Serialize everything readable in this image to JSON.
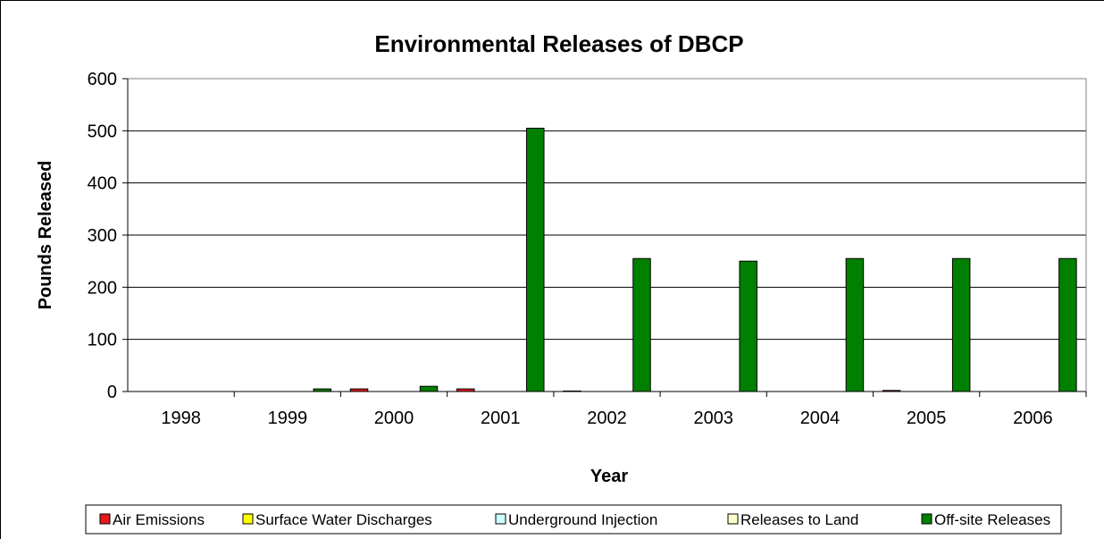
{
  "chart_data": {
    "type": "bar",
    "title": "Environmental Releases of DBCP",
    "xlabel": "Year",
    "ylabel": "Pounds Released",
    "ylim": [
      0,
      600
    ],
    "yticks": [
      0,
      100,
      200,
      300,
      400,
      500,
      600
    ],
    "categories": [
      "1998",
      "1999",
      "2000",
      "2001",
      "2002",
      "2003",
      "2004",
      "2005",
      "2006"
    ],
    "grid": true,
    "legend_position": "bottom",
    "series": [
      {
        "name": "Air Emissions",
        "color": "#e31a1c",
        "values": [
          0,
          0,
          5,
          5,
          1,
          0,
          0,
          2,
          0
        ]
      },
      {
        "name": "Surface Water Discharges",
        "color": "#ffff00",
        "values": [
          0,
          0,
          0,
          0,
          0,
          0,
          0,
          0,
          0
        ]
      },
      {
        "name": "Underground Injection",
        "color": "#ccffff",
        "values": [
          0,
          0,
          0,
          0,
          0,
          0,
          0,
          0,
          0
        ]
      },
      {
        "name": "Releases to Land",
        "color": "#ffffcc",
        "values": [
          0,
          0,
          0,
          0,
          0,
          0,
          0,
          0,
          0
        ]
      },
      {
        "name": "Off-site Releases",
        "color": "#008000",
        "values": [
          0,
          5,
          10,
          505,
          255,
          250,
          255,
          255,
          255
        ]
      }
    ]
  }
}
